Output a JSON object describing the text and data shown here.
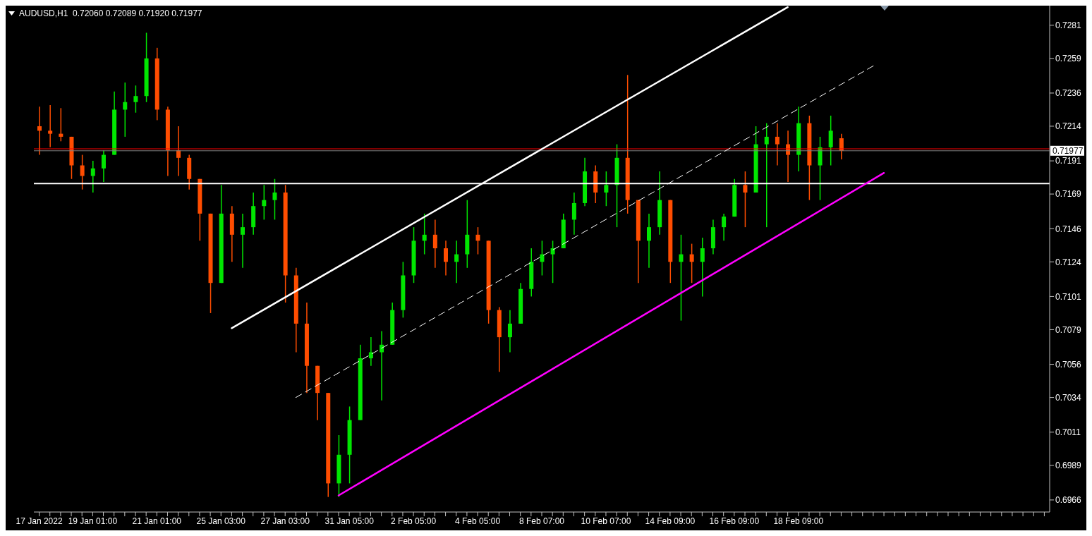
{
  "chart_data": {
    "type": "candlestick",
    "title": "AUDUSD,H1  0.72060 0.72089 0.71920 0.71977",
    "categories": [
      "17 Jan 2022",
      null,
      null,
      null,
      null,
      "19 Jan 01:00",
      null,
      null,
      null,
      null,
      null,
      "21 Jan 01:00",
      null,
      null,
      null,
      null,
      null,
      "25 Jan 03:00",
      null,
      null,
      null,
      null,
      null,
      "27 Jan 03:00",
      null,
      null,
      null,
      null,
      null,
      "31 Jan 05:00",
      null,
      null,
      null,
      null,
      null,
      "2 Feb 05:00",
      null,
      null,
      null,
      null,
      null,
      "4 Feb 05:00",
      null,
      null,
      null,
      null,
      null,
      "8 Feb 07:00",
      null,
      null,
      null,
      null,
      null,
      "10 Feb 07:00",
      null,
      null,
      null,
      null,
      null,
      "14 Feb 09:00",
      null,
      null,
      null,
      null,
      null,
      "16 Feb 09:00",
      null,
      null,
      null,
      null,
      null,
      "18 Feb 09:00",
      null,
      null,
      null,
      null,
      null,
      null,
      null,
      null,
      null,
      null,
      null,
      null,
      null,
      null,
      null,
      null,
      null,
      null,
      null,
      null,
      null,
      null,
      null
    ],
    "ohlc": [
      [
        0.7214,
        0.7227,
        0.7195,
        0.7211
      ],
      [
        0.7211,
        0.7228,
        0.72,
        0.7209
      ],
      [
        0.7209,
        0.7226,
        0.7204,
        0.7207
      ],
      [
        0.7207,
        0.7207,
        0.7179,
        0.7188
      ],
      [
        0.7188,
        0.7195,
        0.7172,
        0.7181
      ],
      [
        0.7181,
        0.7191,
        0.717,
        0.7186
      ],
      [
        0.7186,
        0.7198,
        0.7177,
        0.7195
      ],
      [
        0.7195,
        0.7237,
        0.7195,
        0.7225
      ],
      [
        0.7225,
        0.7243,
        0.7207,
        0.723
      ],
      [
        0.723,
        0.7241,
        0.7223,
        0.7234
      ],
      [
        0.7234,
        0.7276,
        0.723,
        0.7259
      ],
      [
        0.7259,
        0.7266,
        0.7218,
        0.7225
      ],
      [
        0.7225,
        0.7227,
        0.7181,
        0.7198
      ],
      [
        0.7198,
        0.7214,
        0.7181,
        0.7193
      ],
      [
        0.7193,
        0.7195,
        0.7172,
        0.7179
      ],
      [
        0.7179,
        0.7179,
        0.7138,
        0.7156
      ],
      [
        0.7156,
        0.7156,
        0.709,
        0.711
      ],
      [
        0.711,
        0.7175,
        0.711,
        0.7156
      ],
      [
        0.7156,
        0.7161,
        0.7124,
        0.7142
      ],
      [
        0.7142,
        0.7156,
        0.712,
        0.7147
      ],
      [
        0.7147,
        0.717,
        0.7142,
        0.7161
      ],
      [
        0.7161,
        0.7175,
        0.7152,
        0.7165
      ],
      [
        0.7165,
        0.7179,
        0.7152,
        0.717
      ],
      [
        0.717,
        0.7175,
        0.7097,
        0.7115
      ],
      [
        0.7115,
        0.712,
        0.7064,
        0.7083
      ],
      [
        0.7083,
        0.7097,
        0.7037,
        0.7055
      ],
      [
        0.7055,
        0.7055,
        0.7019,
        0.7037
      ],
      [
        0.7037,
        0.7037,
        0.6968,
        0.6977
      ],
      [
        0.6977,
        0.7009,
        0.6968,
        0.6996
      ],
      [
        0.6996,
        0.7028,
        0.6977,
        0.7019
      ],
      [
        0.7019,
        0.7069,
        0.7019,
        0.706
      ],
      [
        0.706,
        0.7074,
        0.7055,
        0.7064
      ],
      [
        0.7064,
        0.7078,
        0.7032,
        0.7069
      ],
      [
        0.7069,
        0.7097,
        0.7069,
        0.7092
      ],
      [
        0.7092,
        0.7124,
        0.7087,
        0.7115
      ],
      [
        0.7115,
        0.7147,
        0.711,
        0.7138
      ],
      [
        0.7138,
        0.7156,
        0.7129,
        0.7142
      ],
      [
        0.7142,
        0.7152,
        0.712,
        0.7133
      ],
      [
        0.7133,
        0.7138,
        0.7115,
        0.7124
      ],
      [
        0.7124,
        0.7138,
        0.711,
        0.7129
      ],
      [
        0.7129,
        0.7165,
        0.712,
        0.7142
      ],
      [
        0.7142,
        0.7147,
        0.7129,
        0.7138
      ],
      [
        0.7138,
        0.7138,
        0.7083,
        0.7092
      ],
      [
        0.7092,
        0.7094,
        0.7051,
        0.7074
      ],
      [
        0.7074,
        0.7092,
        0.7064,
        0.7083
      ],
      [
        0.7083,
        0.711,
        0.7083,
        0.7106
      ],
      [
        0.7106,
        0.7133,
        0.7101,
        0.7124
      ],
      [
        0.7124,
        0.7138,
        0.7115,
        0.7129
      ],
      [
        0.7129,
        0.7138,
        0.711,
        0.7133
      ],
      [
        0.7133,
        0.7156,
        0.7133,
        0.7152
      ],
      [
        0.7152,
        0.717,
        0.7142,
        0.7163
      ],
      [
        0.7163,
        0.7193,
        0.7161,
        0.7184
      ],
      [
        0.7184,
        0.7188,
        0.7163,
        0.717
      ],
      [
        0.717,
        0.7184,
        0.7161,
        0.7175
      ],
      [
        0.7175,
        0.7202,
        0.7147,
        0.7193
      ],
      [
        0.7193,
        0.7248,
        0.7156,
        0.7165
      ],
      [
        0.7165,
        0.7165,
        0.711,
        0.7138
      ],
      [
        0.7138,
        0.7156,
        0.712,
        0.7147
      ],
      [
        0.7147,
        0.7184,
        0.7142,
        0.7165
      ],
      [
        0.7165,
        0.7165,
        0.711,
        0.7124
      ],
      [
        0.7124,
        0.7142,
        0.7085,
        0.7129
      ],
      [
        0.7129,
        0.7136,
        0.711,
        0.7124
      ],
      [
        0.7124,
        0.714,
        0.7101,
        0.7133
      ],
      [
        0.7133,
        0.7152,
        0.7129,
        0.7147
      ],
      [
        0.7147,
        0.7156,
        0.7138,
        0.7154
      ],
      [
        0.7154,
        0.7179,
        0.7154,
        0.7175
      ],
      [
        0.7175,
        0.7184,
        0.7147,
        0.717
      ],
      [
        0.717,
        0.7214,
        0.717,
        0.7202
      ],
      [
        0.7202,
        0.7216,
        0.7147,
        0.7207
      ],
      [
        0.7207,
        0.7216,
        0.7188,
        0.7202
      ],
      [
        0.7202,
        0.7211,
        0.7177,
        0.7195
      ],
      [
        0.7195,
        0.7227,
        0.7184,
        0.7216
      ],
      [
        0.7216,
        0.7221,
        0.7165,
        0.7188
      ],
      [
        0.7188,
        0.7207,
        0.7165,
        0.72
      ],
      [
        0.72,
        0.7221,
        0.7188,
        0.7211
      ],
      [
        0.7206,
        0.72089,
        0.7192,
        0.71977
      ],
      null,
      null,
      null,
      null,
      null,
      null,
      null,
      null,
      null,
      null,
      null,
      null,
      null,
      null,
      null,
      null,
      null,
      null,
      null
    ],
    "colors": [
      "#ff4d00",
      "#ff4d00",
      "#ff4d00",
      "#ff4d00",
      "#ff4d00",
      "#00e600",
      "#00e600",
      "#00e600",
      "#00e600",
      "#00e600",
      "#00e600",
      "#ff4d00",
      "#ff4d00",
      "#ff4d00",
      "#ff4d00",
      "#ff4d00",
      "#ff4d00",
      "#00e600",
      "#ff4d00",
      "#00e600",
      "#00e600",
      "#00e600",
      "#00e600",
      "#ff4d00",
      "#ff4d00",
      "#ff4d00",
      "#ff4d00",
      "#ff4d00",
      "#00e600",
      "#00e600",
      "#00e600",
      "#00e600",
      "#00e600",
      "#00e600",
      "#00e600",
      "#00e600",
      "#00e600",
      "#ff4d00",
      "#ff4d00",
      "#00e600",
      "#00e600",
      "#ff4d00",
      "#ff4d00",
      "#ff4d00",
      "#00e600",
      "#00e600",
      "#00e600",
      "#00e600",
      "#00e600",
      "#00e600",
      "#00e600",
      "#00e600",
      "#ff4d00",
      "#00e600",
      "#00e600",
      "#ff4d00",
      "#ff4d00",
      "#00e600",
      "#00e600",
      "#ff4d00",
      "#00e600",
      "#ff4d00",
      "#00e600",
      "#00e600",
      "#00e600",
      "#00e600",
      "#ff4d00",
      "#00e600",
      "#00e600",
      "#ff4d00",
      "#ff4d00",
      "#00e600",
      "#ff4d00",
      "#00e600",
      "#00e600",
      "#ff4d00",
      null,
      null,
      null,
      null,
      null,
      null,
      null,
      null,
      null,
      null,
      null,
      null,
      null,
      null,
      null,
      null,
      null,
      null,
      null
    ],
    "series": [
      {
        "type": "line",
        "color": "#ffffff",
        "line_style": "solid",
        "values": [
          null,
          null,
          null,
          null,
          null,
          null,
          null,
          null,
          null,
          null,
          null,
          null,
          null,
          null,
          null,
          null,
          null,
          null,
          0.708,
          null,
          null,
          null,
          null,
          null,
          null,
          null,
          null,
          null,
          null,
          null,
          null,
          null,
          null,
          null,
          null,
          null,
          null,
          null,
          null,
          null,
          null,
          null,
          null,
          null,
          null,
          null,
          null,
          null,
          null,
          null,
          null,
          null,
          null,
          null,
          null,
          null,
          null,
          null,
          null,
          null,
          null,
          null,
          null,
          null,
          null,
          null,
          null,
          null,
          null,
          null,
          0.7293,
          null,
          null,
          null,
          null,
          null,
          null,
          null,
          null,
          null,
          null,
          null,
          null,
          null,
          null,
          null,
          null,
          null,
          null,
          null,
          null,
          null,
          null,
          null,
          null
        ]
      },
      {
        "type": "line",
        "color": "#ffffff",
        "line_style": "dashed",
        "values": [
          null,
          null,
          null,
          null,
          null,
          null,
          null,
          null,
          null,
          null,
          null,
          null,
          null,
          null,
          null,
          null,
          null,
          null,
          null,
          null,
          null,
          null,
          null,
          null,
          0.7034,
          null,
          null,
          null,
          null,
          null,
          null,
          null,
          null,
          null,
          null,
          null,
          null,
          null,
          null,
          null,
          null,
          null,
          null,
          null,
          null,
          null,
          null,
          null,
          null,
          null,
          null,
          null,
          null,
          null,
          null,
          null,
          null,
          null,
          null,
          null,
          null,
          null,
          null,
          null,
          null,
          null,
          null,
          null,
          null,
          null,
          null,
          null,
          null,
          null,
          null,
          null,
          null,
          null,
          0.7254,
          null,
          null,
          null,
          null,
          null,
          null,
          null,
          null,
          null,
          null,
          null,
          null,
          null,
          null,
          null,
          null
        ]
      },
      {
        "type": "line",
        "color": "#ff00ff",
        "line_style": "solid",
        "values": [
          null,
          null,
          null,
          null,
          null,
          null,
          null,
          null,
          null,
          null,
          null,
          null,
          null,
          null,
          null,
          null,
          null,
          null,
          null,
          null,
          null,
          null,
          null,
          null,
          null,
          null,
          null,
          null,
          0.6969,
          null,
          null,
          null,
          null,
          null,
          null,
          null,
          null,
          null,
          null,
          null,
          null,
          null,
          null,
          null,
          null,
          null,
          null,
          null,
          null,
          null,
          null,
          null,
          null,
          null,
          null,
          null,
          null,
          null,
          null,
          null,
          null,
          null,
          null,
          null,
          null,
          null,
          null,
          null,
          null,
          null,
          null,
          null,
          null,
          null,
          null,
          null,
          null,
          null,
          null,
          0.7183,
          null,
          null,
          null,
          null,
          null,
          null,
          null,
          null,
          null,
          null,
          null,
          null,
          null,
          null,
          null
        ]
      }
    ],
    "ylim": [
      0.6958,
      0.7294
    ],
    "yticks": [
      0.7281,
      0.7259,
      0.7236,
      0.7214,
      0.7191,
      0.7169,
      0.7146,
      0.7124,
      0.7101,
      0.7079,
      0.7056,
      0.7034,
      0.7011,
      0.6989,
      0.6966
    ],
    "ref_lines": [
      {
        "axis": "y",
        "value": 0.7199,
        "color": "#ff0000"
      },
      {
        "axis": "y",
        "value": 0.71977,
        "color": "#808080",
        "label": "0.71977"
      },
      {
        "axis": "y",
        "value": 0.7176,
        "color": "#ffffff"
      }
    ]
  }
}
